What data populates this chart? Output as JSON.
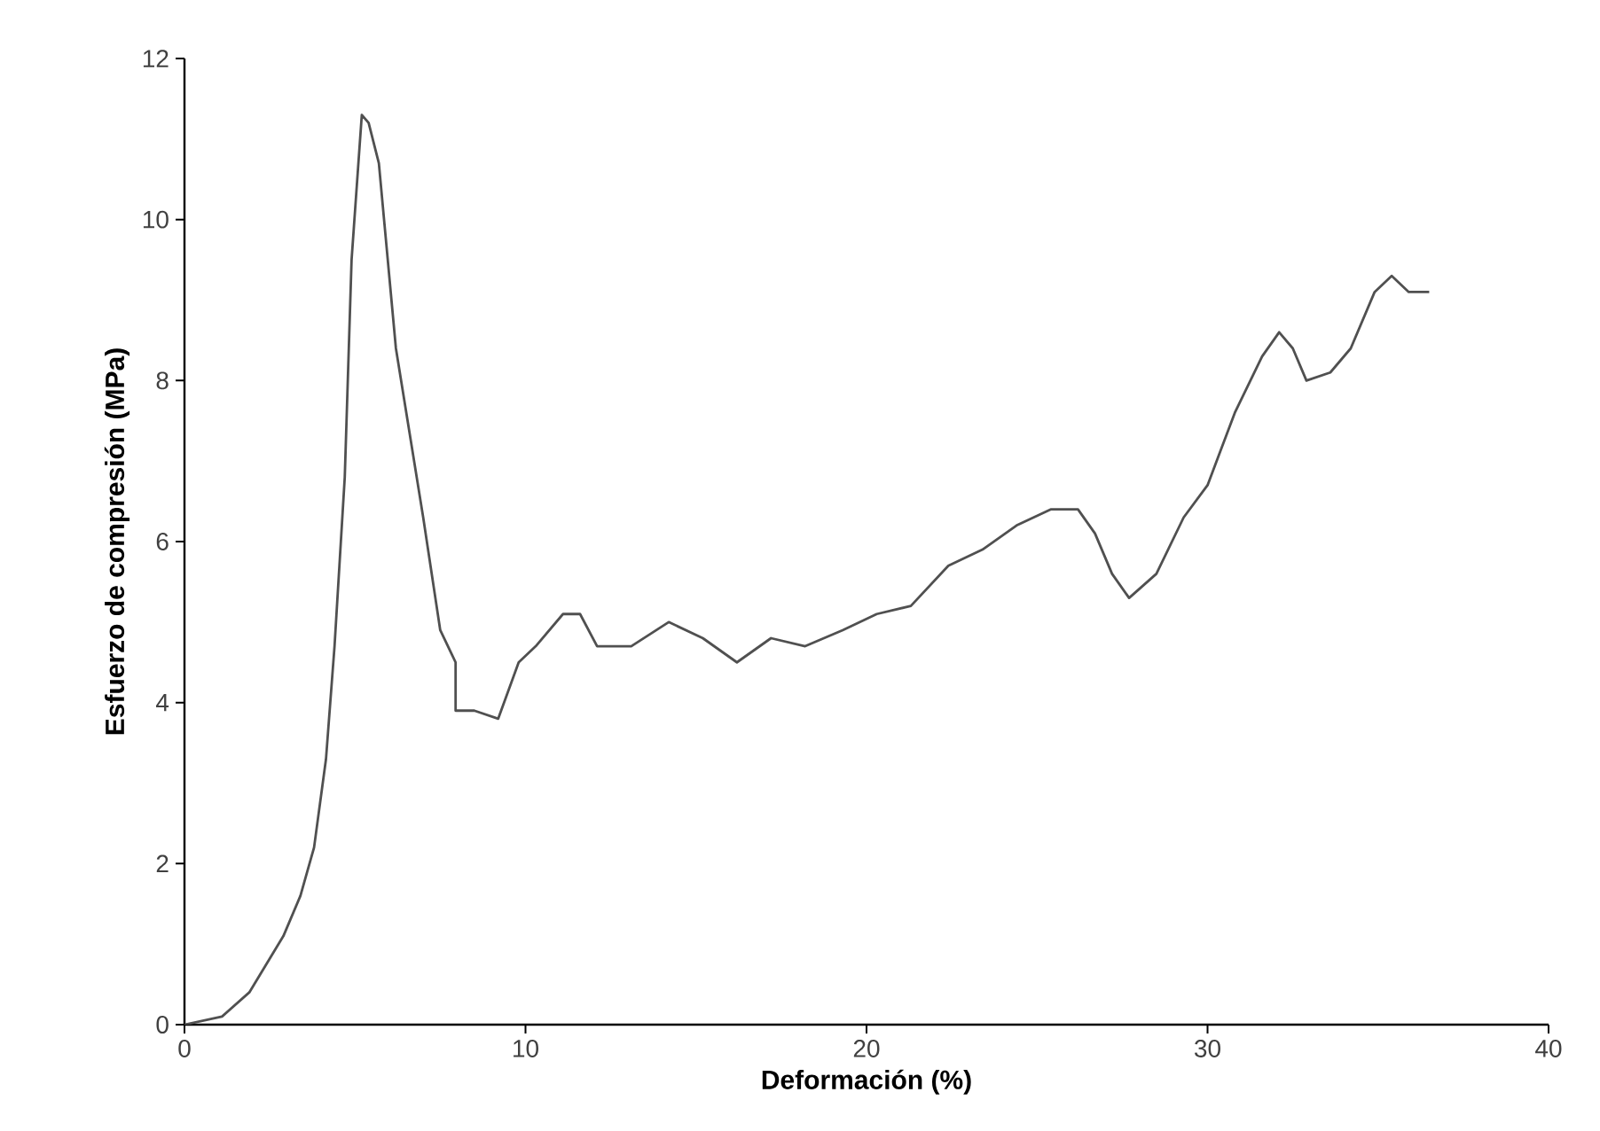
{
  "chart_data": {
    "type": "line",
    "xlabel": "Deformación (%)",
    "ylabel": "Esfuerzo de compresión (MPa)",
    "xlim": [
      0,
      40
    ],
    "ylim": [
      0,
      12
    ],
    "xticks": [
      0,
      10,
      20,
      30,
      40
    ],
    "yticks": [
      0,
      2,
      4,
      6,
      8,
      10,
      12
    ],
    "grid": false,
    "series": [
      {
        "color": "#505050",
        "x": [
          0,
          1.1,
          1.9,
          2.9,
          3.4,
          3.8,
          4.15,
          4.4,
          4.7,
          4.9,
          5.2,
          5.4,
          5.7,
          6.2,
          7.0,
          7.5,
          7.95,
          7.95,
          8.5,
          9.2,
          9.8,
          10.3,
          11.1,
          11.6,
          12.1,
          13.1,
          14.2,
          15.2,
          16.2,
          17.2,
          18.2,
          19.3,
          20.3,
          21.3,
          22.4,
          23.4,
          24.4,
          25.4,
          26.2,
          26.7,
          27.2,
          27.7,
          28.5,
          29.3,
          30.0,
          30.8,
          31.6,
          32.1,
          32.5,
          32.9,
          33.6,
          34.2,
          34.9,
          35.4,
          35.9,
          36.5
        ],
        "values": [
          0,
          0.1,
          0.4,
          1.1,
          1.6,
          2.2,
          3.3,
          4.7,
          6.8,
          9.5,
          11.3,
          11.2,
          10.7,
          8.4,
          6.3,
          4.9,
          4.5,
          3.9,
          3.9,
          3.8,
          4.5,
          4.7,
          5.1,
          5.1,
          4.7,
          4.7,
          5.0,
          4.8,
          4.5,
          4.8,
          4.7,
          4.9,
          5.1,
          5.2,
          5.7,
          5.9,
          6.2,
          6.4,
          6.4,
          6.1,
          5.6,
          5.3,
          5.6,
          6.3,
          6.7,
          7.6,
          8.3,
          8.6,
          8.4,
          8.0,
          8.1,
          8.4,
          9.1,
          9.3,
          9.1,
          9.1
        ]
      }
    ]
  }
}
